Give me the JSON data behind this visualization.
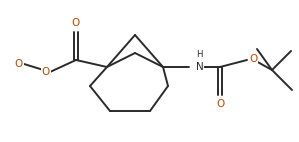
{
  "bg_color": "#ffffff",
  "line_color": "#2a2a2a",
  "bond_lw": 1.4,
  "O_color": "#b84800",
  "N_color": "#2a2a2a",
  "font_size": 7.5,
  "font_size_H": 6.2,
  "figsize": [
    2.99,
    1.42
  ],
  "dpi": 100,
  "xlim": [
    0.0,
    2.99
  ],
  "ylim": [
    0.0,
    1.42
  ]
}
